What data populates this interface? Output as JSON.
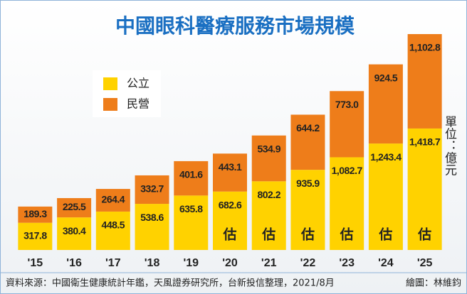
{
  "chart_data": {
    "type": "stacked_bar",
    "title": "中國眼科醫療服務市場規模",
    "categories": [
      "'15",
      "'16",
      "'17",
      "'18",
      "'19",
      "'20",
      "'21",
      "'22",
      "'23",
      "'24",
      "'25"
    ],
    "series": [
      {
        "name": "公立",
        "color": "#ffd200",
        "values": [
          317.8,
          380.4,
          448.5,
          538.6,
          635.8,
          682.6,
          802.2,
          935.9,
          1082.7,
          1243.4,
          1418.7
        ],
        "value_labels": [
          "317.8",
          "380.4",
          "448.5",
          "538.6",
          "635.8",
          "682.6",
          "802.2",
          "935.9",
          "1,082.7",
          "1,243.4",
          "1,418.7"
        ]
      },
      {
        "name": "民營",
        "color": "#ee7d1a",
        "values": [
          189.3,
          225.5,
          264.4,
          332.7,
          401.6,
          443.1,
          534.9,
          644.2,
          773.0,
          924.5,
          1102.8
        ],
        "value_labels": [
          "189.3",
          "225.5",
          "264.4",
          "332.7",
          "401.6",
          "443.1",
          "534.9",
          "644.2",
          "773.0",
          "924.5",
          "1,102.8"
        ]
      }
    ],
    "estimate_marks": [
      null,
      null,
      null,
      null,
      null,
      "估",
      "估",
      "估",
      "估",
      "估",
      "估"
    ],
    "unit_label": "單位：億元",
    "source": "資料來源：中國衛生健康統計年鑑，天風證券研究所，台新投信整理，2021/8月",
    "credit": "繪圖：林維鈞"
  }
}
